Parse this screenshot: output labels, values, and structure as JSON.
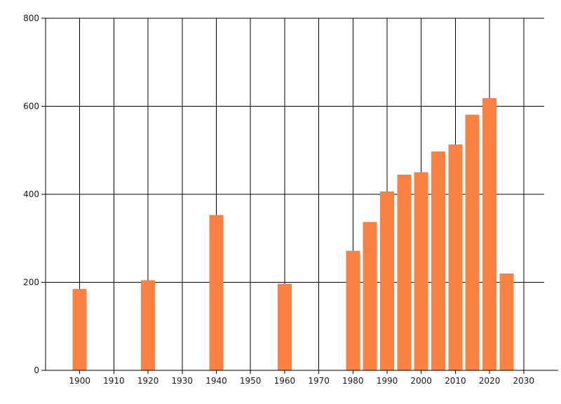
{
  "chart_data": {
    "type": "bar",
    "categories": [
      "1900",
      "1920",
      "1940",
      "1960",
      "1980",
      "1985",
      "1990",
      "1995",
      "2000",
      "2005",
      "2010",
      "2015",
      "2020",
      "2025"
    ],
    "x": [
      1900,
      1920,
      1940,
      1960,
      1980,
      1985,
      1990,
      1995,
      2000,
      2005,
      2010,
      2015,
      2020,
      2025
    ],
    "values": [
      185,
      205,
      353,
      197,
      272,
      337,
      406,
      445,
      450,
      497,
      513,
      581,
      618,
      220
    ],
    "xlim": [
      1890,
      2036
    ],
    "ylim": [
      0,
      800
    ],
    "x_ticks": [
      1900,
      1910,
      1920,
      1930,
      1940,
      1950,
      1960,
      1970,
      1980,
      1990,
      2000,
      2010,
      2020,
      2030
    ],
    "y_ticks": [
      0,
      200,
      400,
      600,
      800
    ],
    "grid": true,
    "legend": false,
    "colors": {
      "bar": "#fb8142",
      "grid": "#000000",
      "axis": "#000000",
      "text": "#17171c",
      "background": "#ffffff"
    }
  }
}
